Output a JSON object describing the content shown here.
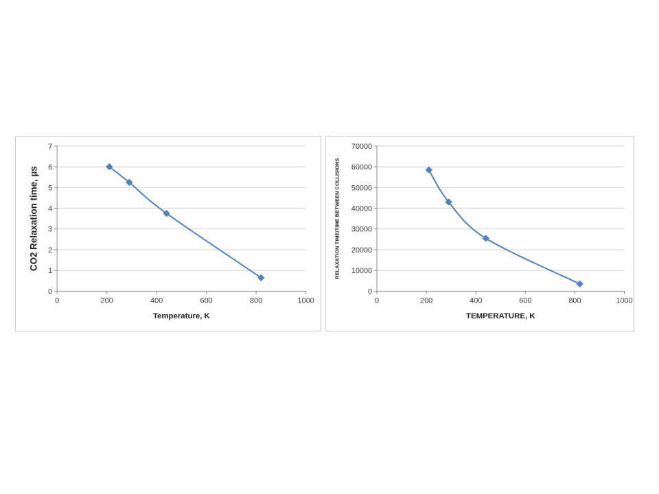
{
  "colors": {
    "series": "#4F81BD",
    "grid": "#D3D3D3",
    "axis": "#868686",
    "tick_text": "#3d3d3d",
    "label_text": "#1f1f1f",
    "chart_border": "#c8c8c8",
    "background": "#ffffff"
  },
  "chart_data": [
    {
      "type": "line",
      "title": "",
      "xlabel": "Temperature, K",
      "ylabel": "CO2 Relaxation time, µs",
      "x": [
        210,
        290,
        440,
        820
      ],
      "values": [
        6.0,
        5.25,
        3.75,
        0.65
      ],
      "xlim": [
        0,
        1000
      ],
      "ylim": [
        0,
        7
      ],
      "xticks": [
        0,
        200,
        400,
        600,
        800,
        1000
      ],
      "yticks": [
        0,
        1,
        2,
        3,
        4,
        5,
        6,
        7
      ],
      "grid": "horizontal",
      "legend": "none",
      "marker": "diamond",
      "smooth_line": true,
      "line_color": "#4F81BD",
      "marker_color": "#4F81BD"
    },
    {
      "type": "line",
      "title": "",
      "xlabel": "TEMPERATURE, K",
      "ylabel": "RELAXATION TIME/TIME BETWEEN COLLISIONS",
      "x": [
        210,
        290,
        440,
        820
      ],
      "values": [
        58500,
        43000,
        25500,
        3500
      ],
      "xlim": [
        0,
        1000
      ],
      "ylim": [
        0,
        70000
      ],
      "xticks": [
        0,
        200,
        400,
        600,
        800,
        1000
      ],
      "yticks": [
        0,
        10000,
        20000,
        30000,
        40000,
        50000,
        60000,
        70000
      ],
      "grid": "horizontal",
      "legend": "none",
      "marker": "diamond",
      "smooth_line": true,
      "line_color": "#4F81BD",
      "marker_color": "#4F81BD"
    }
  ]
}
